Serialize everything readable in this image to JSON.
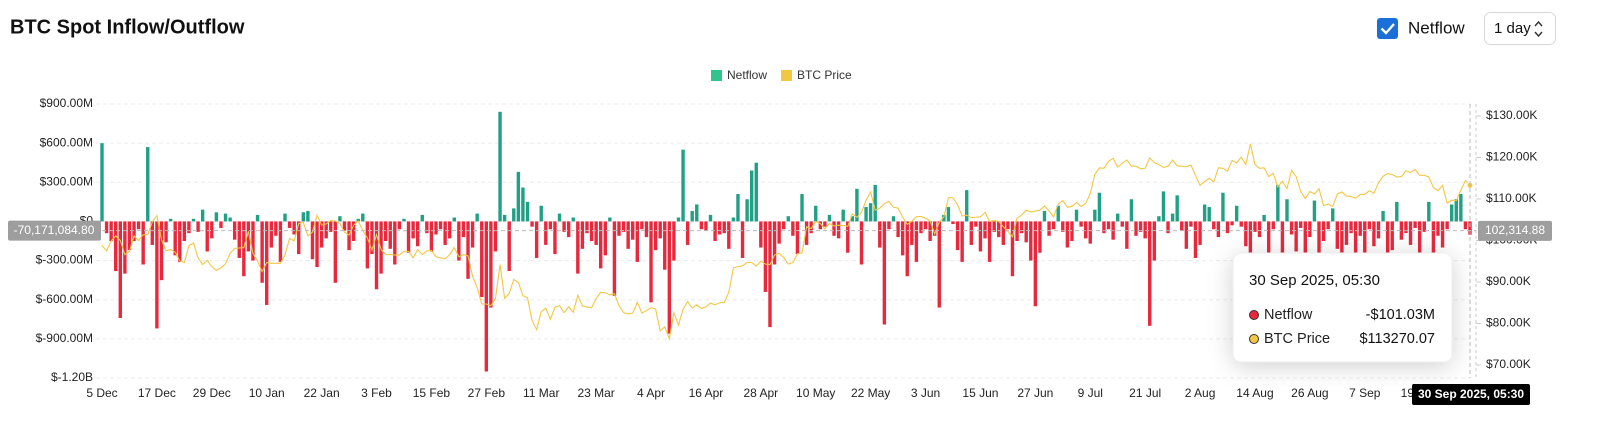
{
  "controls": {
    "toggle_label": "Netflow",
    "interval": "1 day"
  },
  "chart_data": {
    "type": "bar",
    "title": "BTC Spot Inflow/Outflow",
    "categories": [
      "5 Dec",
      null,
      null,
      null,
      null,
      null,
      null,
      null,
      null,
      null,
      null,
      null,
      "17 Dec",
      null,
      null,
      null,
      null,
      null,
      null,
      null,
      null,
      null,
      null,
      null,
      "29 Dec",
      null,
      null,
      null,
      null,
      null,
      null,
      null,
      null,
      null,
      null,
      null,
      "10 Jan",
      null,
      null,
      null,
      null,
      null,
      null,
      null,
      null,
      null,
      null,
      null,
      "22 Jan",
      null,
      null,
      null,
      null,
      null,
      null,
      null,
      null,
      null,
      null,
      null,
      "3 Feb",
      null,
      null,
      null,
      null,
      null,
      null,
      null,
      null,
      null,
      null,
      null,
      "15 Feb",
      null,
      null,
      null,
      null,
      null,
      null,
      null,
      null,
      null,
      null,
      null,
      "27 Feb",
      null,
      null,
      null,
      null,
      null,
      null,
      null,
      null,
      null,
      null,
      null,
      "11 Mar",
      null,
      null,
      null,
      null,
      null,
      null,
      null,
      null,
      null,
      null,
      null,
      "23 Mar",
      null,
      null,
      null,
      null,
      null,
      null,
      null,
      null,
      null,
      null,
      null,
      "4 Apr",
      null,
      null,
      null,
      null,
      null,
      null,
      null,
      null,
      null,
      null,
      null,
      "16 Apr",
      null,
      null,
      null,
      null,
      null,
      null,
      null,
      null,
      null,
      null,
      null,
      "28 Apr",
      null,
      null,
      null,
      null,
      null,
      null,
      null,
      null,
      null,
      null,
      null,
      "10 May",
      null,
      null,
      null,
      null,
      null,
      null,
      null,
      null,
      null,
      null,
      null,
      "22 May",
      null,
      null,
      null,
      null,
      null,
      null,
      null,
      null,
      null,
      null,
      null,
      "3 Jun",
      null,
      null,
      null,
      null,
      null,
      null,
      null,
      null,
      null,
      null,
      null,
      "15 Jun",
      null,
      null,
      null,
      null,
      null,
      null,
      null,
      null,
      null,
      null,
      null,
      "27 Jun",
      null,
      null,
      null,
      null,
      null,
      null,
      null,
      null,
      null,
      null,
      null,
      "9 Jul",
      null,
      null,
      null,
      null,
      null,
      null,
      null,
      null,
      null,
      null,
      null,
      "21 Jul",
      null,
      null,
      null,
      null,
      null,
      null,
      null,
      null,
      null,
      null,
      null,
      "2 Aug",
      null,
      null,
      null,
      null,
      null,
      null,
      null,
      null,
      null,
      null,
      null,
      "14 Aug",
      null,
      null,
      null,
      null,
      null,
      null,
      null,
      null,
      null,
      null,
      null,
      "26 Aug",
      null,
      null,
      null,
      null,
      null,
      null,
      null,
      null,
      null,
      null,
      null,
      "7 Sep",
      null,
      null,
      null,
      null,
      null,
      null,
      null,
      null,
      null,
      null,
      null,
      "19 Sep",
      null,
      null,
      null,
      null,
      null,
      null,
      null,
      null,
      null,
      null,
      null
    ],
    "series": [
      {
        "name": "Netflow",
        "type": "bar",
        "color": "#31c48d",
        "positive_color": "#22a085",
        "negative_color": "#e8283c",
        "values": [
          600,
          -90,
          -150,
          -380,
          -740,
          -400,
          -220,
          -150,
          -60,
          -330,
          570,
          -180,
          -820,
          -450,
          -160,
          20,
          -260,
          -310,
          -150,
          -90,
          20,
          -80,
          90,
          -230,
          -130,
          70,
          -50,
          60,
          30,
          -140,
          -280,
          -420,
          -230,
          -300,
          50,
          -470,
          -640,
          -200,
          -110,
          -310,
          60,
          -50,
          -100,
          -250,
          70,
          80,
          -290,
          -350,
          -200,
          -130,
          -80,
          -470,
          40,
          -70,
          -220,
          -150,
          20,
          60,
          -360,
          -250,
          -520,
          -400,
          -150,
          -210,
          -330,
          -60,
          20,
          -240,
          -130,
          -190,
          50,
          -90,
          -230,
          -100,
          -60,
          -180,
          -130,
          30,
          -300,
          -120,
          -440,
          -200,
          60,
          -580,
          -1150,
          -660,
          -230,
          840,
          50,
          -380,
          100,
          380,
          260,
          150,
          -40,
          -280,
          120,
          -180,
          -60,
          -250,
          60,
          -80,
          -120,
          30,
          -400,
          -210,
          -90,
          -150,
          -180,
          -360,
          -260,
          30,
          -570,
          -110,
          -80,
          -210,
          -140,
          -310,
          -60,
          -120,
          -620,
          -220,
          -130,
          -370,
          -860,
          -300,
          30,
          550,
          -180,
          80,
          130,
          -60,
          -70,
          50,
          -150,
          -100,
          -90,
          -210,
          30,
          210,
          -280,
          170,
          390,
          450,
          -200,
          -540,
          -810,
          -330,
          -170,
          -60,
          40,
          -110,
          -250,
          210,
          -180,
          -90,
          120,
          -60,
          -40,
          50,
          -110,
          -130,
          90,
          -240,
          40,
          250,
          -330,
          110,
          140,
          280,
          -200,
          -790,
          -60,
          40,
          -120,
          -260,
          -420,
          -180,
          -310,
          -90,
          -60,
          -150,
          -110,
          -660,
          50,
          110,
          -20,
          -220,
          -310,
          240,
          -180,
          -40,
          -230,
          -130,
          -310,
          -80,
          -120,
          -180,
          -60,
          -420,
          -150,
          -90,
          -160,
          -300,
          -650,
          -240,
          80,
          -110,
          -60,
          120,
          -80,
          -200,
          -150,
          90,
          -40,
          -130,
          -170,
          90,
          220,
          -90,
          -60,
          -140,
          60,
          -40,
          -210,
          170,
          -110,
          -80,
          -130,
          -800,
          -300,
          40,
          230,
          -90,
          60,
          200,
          -70,
          -210,
          -40,
          -280,
          -180,
          130,
          110,
          -60,
          -120,
          220,
          -90,
          -30,
          120,
          -40,
          -190,
          -240,
          -80,
          -120,
          50,
          -240,
          -60,
          280,
          -310,
          170,
          -100,
          -230,
          -50,
          -340,
          -120,
          160,
          -280,
          -150,
          -60,
          100,
          -210,
          -340,
          -180,
          -90,
          -250,
          -110,
          -240,
          -60,
          -190,
          -130,
          80,
          -300,
          -220,
          150,
          -140,
          -90,
          -180,
          -50,
          -260,
          -80,
          150,
          -340,
          -110,
          -200,
          -60,
          130,
          170,
          210,
          -60,
          -101.03
        ]
      },
      {
        "name": "BTC Price",
        "type": "line",
        "axis": "y2",
        "color": "#f2c744",
        "values": [
          98800,
          97500,
          99900,
          101100,
          100000,
          96600,
          97400,
          101100,
          100000,
          101400,
          101400,
          104500,
          106000,
          100200,
          97500,
          97800,
          97200,
          95100,
          94700,
          98700,
          99400,
          95800,
          94200,
          95200,
          93700,
          92800,
          93400,
          94400,
          96900,
          98100,
          98200,
          98300,
          102200,
          96900,
          95000,
          92500,
          94700,
          94500,
          94500,
          94500,
          96500,
          100500,
          99900,
          104100,
          104400,
          101100,
          102000,
          106100,
          103700,
          104000,
          104800,
          104700,
          104100,
          102000,
          101300,
          103700,
          104700,
          102400,
          100600,
          97700,
          101400,
          97800,
          96600,
          96600,
          96500,
          96500,
          97400,
          97400,
          95800,
          97800,
          96600,
          97500,
          97600,
          96100,
          95800,
          95600,
          96600,
          98300,
          96100,
          96600,
          96300,
          91400,
          88700,
          84700,
          84700,
          84300,
          86000,
          94200,
          86100,
          87200,
          90600,
          89900,
          86700,
          86200,
          80700,
          78500,
          82900,
          83700,
          81000,
          83900,
          84300,
          82600,
          84000,
          82700,
          86800,
          84200,
          84000,
          83800,
          86000,
          87500,
          87400,
          86900,
          87200,
          84300,
          82600,
          82300,
          82500,
          85100,
          82500,
          83100,
          83800,
          83500,
          78200,
          79200,
          76300,
          82600,
          79600,
          83400,
          85300,
          83700,
          84500,
          83600,
          84000,
          84900,
          84500,
          85000,
          85100,
          87500,
          93400,
          93700,
          93900,
          94700,
          94700,
          93800,
          95000,
          94300,
          94200,
          96500,
          96900,
          95900,
          94300,
          94700,
          96800,
          97000,
          103300,
          102900,
          104600,
          104100,
          102800,
          104100,
          103500,
          103700,
          103600,
          103400,
          106400,
          105600,
          106800,
          109700,
          111700,
          107300,
          107800,
          108900,
          109400,
          108000,
          107800,
          105600,
          103900,
          104600,
          105700,
          105800,
          105400,
          104700,
          101600,
          104400,
          105700,
          110300,
          110300,
          108600,
          105900,
          106100,
          105500,
          105600,
          105700,
          106800,
          104600,
          104800,
          104600,
          103300,
          102200,
          100900,
          105400,
          106100,
          107300,
          106900,
          107100,
          107300,
          108300,
          107100,
          105700,
          108800,
          109600,
          108000,
          108200,
          109200,
          108200,
          108900,
          111300,
          115900,
          117500,
          117400,
          119100,
          119800,
          117700,
          118600,
          119400,
          117900,
          117900,
          117300,
          117400,
          119900,
          118800,
          118300,
          117600,
          117900,
          119400,
          118000,
          117900,
          117800,
          118200,
          115700,
          113300,
          114200,
          115000,
          114100,
          117500,
          117400,
          116700,
          119300,
          118700,
          120100,
          118300,
          123300,
          118300,
          117400,
          117500,
          115400,
          116200,
          112900,
          114300,
          112500,
          116900,
          115400,
          111800,
          110100,
          111800,
          111200,
          112500,
          108400,
          108800,
          108200,
          111200,
          111700,
          110700,
          110600,
          110200,
          111100,
          111100,
          112000,
          111400,
          113900,
          115500,
          116100,
          115900,
          115300,
          115400,
          116800,
          116400,
          117100,
          115700,
          115700,
          115300,
          112800,
          112000,
          113300,
          109000,
          109700,
          109600,
          112100,
          114400,
          113270.07
        ]
      }
    ],
    "ylim": [
      -1200,
      900
    ],
    "yticks": [
      {
        "value": -1200,
        "label": "$-1.20B"
      },
      {
        "value": -900,
        "label": "$-900.00M"
      },
      {
        "value": -600,
        "label": "$-600.00M"
      },
      {
        "value": -300,
        "label": "$-300.00M"
      },
      {
        "value": 0,
        "label": "$0"
      },
      {
        "value": 300,
        "label": "$300.00M"
      },
      {
        "value": 600,
        "label": "$600.00M"
      },
      {
        "value": 900,
        "label": "$900.00M"
      }
    ],
    "y2lim": [
      70000,
      130000
    ],
    "y2ticks": [
      {
        "value": 70000,
        "label": "$70.00K"
      },
      {
        "value": 80000,
        "label": "$80.00K"
      },
      {
        "value": 90000,
        "label": "$90.00K"
      },
      {
        "value": 100000,
        "label": "$100.00K"
      },
      {
        "value": 110000,
        "label": "$110.00K"
      },
      {
        "value": 120000,
        "label": "$120.00K"
      },
      {
        "value": 130000,
        "label": "$130.00K"
      }
    ],
    "grid": true,
    "legend": "top",
    "crosshair": {
      "y_value": -70.1710848,
      "y_label": "-70,171,084.80",
      "y2_value": 102314.88,
      "y2_label": "102,314.88",
      "x_label": "30 Sep 2025, 05:30"
    },
    "tooltip": {
      "title": "30 Sep 2025, 05:30",
      "rows": [
        {
          "name": "Netflow",
          "color": "#e8283c",
          "value": "-$101.03M"
        },
        {
          "name": "BTC Price",
          "color": "#f2c744",
          "value": "$113270.07"
        }
      ]
    }
  }
}
